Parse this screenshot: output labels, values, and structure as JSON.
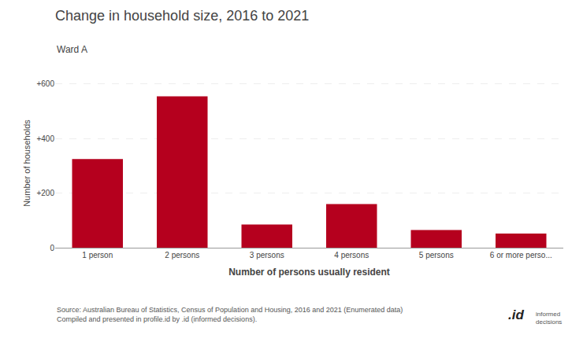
{
  "chart_data": {
    "type": "bar",
    "title": "Change in household size, 2016 to 2021",
    "subtitle": "Ward A",
    "categories": [
      "1 person",
      "2 persons",
      "3 persons",
      "4 persons",
      "5 persons",
      "6 or more perso..."
    ],
    "values": [
      325,
      555,
      85,
      160,
      65,
      52
    ],
    "color": "#b5001e",
    "ylabel": "Number of households",
    "xlabel": "Number of persons usually resident",
    "ylim": [
      0,
      620
    ],
    "yticks": [
      0,
      {
        "value": 200,
        "label": "+200"
      },
      {
        "value": 400,
        "label": "+400"
      },
      {
        "value": 600,
        "label": "+600"
      }
    ],
    "grid": true,
    "annotations": [
      "Source: Australian Bureau of Statistics, Census of Population and Housing, 2016 and 2021 (Enumerated data)\nCompiled and presented in profile.id by .id (informed decisions).",
      ".id",
      "informed\ndecisions"
    ]
  }
}
